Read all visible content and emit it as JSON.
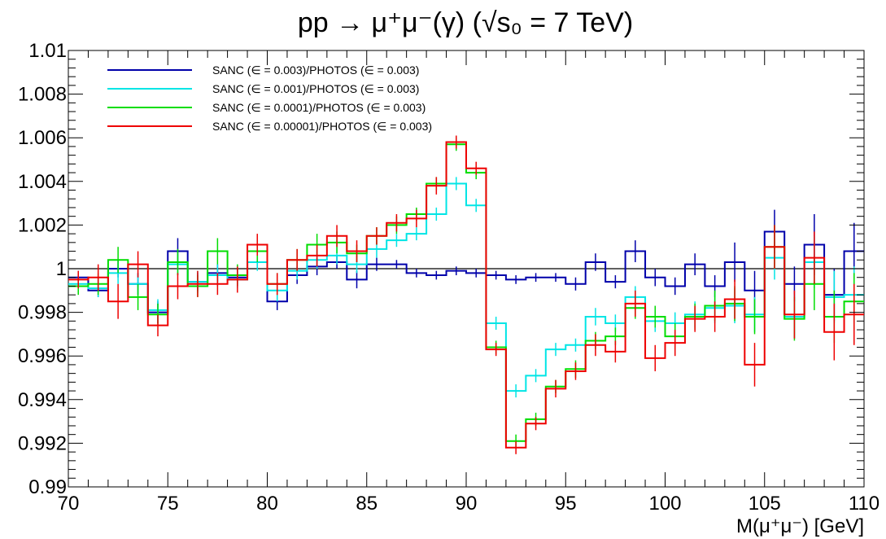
{
  "chart_data": {
    "type": "line",
    "title": "pp → μ⁺μ⁻(γ) (√s₀ = 7 TeV)",
    "xlabel": "M(μ⁺μ⁻) [GeV]",
    "ylabel": "",
    "xlim": [
      70,
      110
    ],
    "ylim": [
      0.99,
      1.01
    ],
    "x_ticks": [
      70,
      75,
      80,
      85,
      90,
      95,
      100,
      105,
      110
    ],
    "x_tick_labels": [
      "70",
      "75",
      "80",
      "85",
      "90",
      "95",
      "100",
      "105",
      "110"
    ],
    "y_ticks": [
      0.99,
      0.992,
      0.994,
      0.996,
      0.998,
      1.0,
      1.002,
      1.004,
      1.006,
      1.008,
      1.01
    ],
    "y_tick_labels": [
      "0.99",
      "0.992",
      "0.994",
      "0.996",
      "0.998",
      "1",
      "1.002",
      "1.004",
      "1.006",
      "1.008",
      "1.01"
    ],
    "reference_line": 1.0,
    "legend_position": "top-left",
    "grid": false,
    "bin_edges": [
      70,
      71,
      72,
      73,
      74,
      75,
      76,
      77,
      78,
      79,
      80,
      81,
      82,
      83,
      84,
      85,
      86,
      87,
      88,
      89,
      90,
      91,
      92,
      93,
      94,
      95,
      96,
      97,
      98,
      99,
      100,
      101,
      102,
      103,
      104,
      105,
      106,
      107,
      108,
      109,
      110
    ],
    "series": [
      {
        "name": "SANC (∈ = 0.003)/PHOTOS (∈ = 0.003)",
        "color": "#0000aa",
        "values": [
          0.9996,
          0.999,
          1.0,
          0.9993,
          0.998,
          1.0008,
          0.9994,
          0.9998,
          0.9996,
          1.0003,
          0.9985,
          0.9997,
          1.0001,
          1.0003,
          0.9995,
          1.0002,
          1.0002,
          0.9998,
          0.9997,
          0.9999,
          0.9998,
          0.9997,
          0.9995,
          0.9996,
          0.9996,
          0.9993,
          1.0003,
          0.9994,
          1.0008,
          0.9996,
          0.9992,
          1.0002,
          0.9992,
          1.0003,
          0.999,
          1.0017,
          0.9993,
          1.0011,
          0.9988,
          1.0008
        ],
        "errors": [
          0.0003,
          0.0003,
          0.0004,
          0.0005,
          0.0005,
          0.0006,
          0.0004,
          0.0004,
          0.0004,
          0.0003,
          0.0004,
          0.0004,
          0.0004,
          0.0003,
          0.0004,
          0.0003,
          0.0002,
          0.0002,
          0.0002,
          0.0002,
          0.0002,
          0.0002,
          0.0002,
          0.0002,
          0.0002,
          0.0003,
          0.0004,
          0.0003,
          0.0005,
          0.0004,
          0.0004,
          0.0005,
          0.0005,
          0.0009,
          0.0009,
          0.001,
          0.0008,
          0.0014,
          0.0012,
          0.0013
        ]
      },
      {
        "name": "SANC (∈ = 0.001)/PHOTOS (∈ = 0.003)",
        "color": "#00e5e5",
        "values": [
          0.9993,
          0.9991,
          0.9998,
          0.9993,
          0.9981,
          1.0002,
          0.9994,
          0.9997,
          0.9995,
          1.0003,
          0.999,
          0.9999,
          1.0004,
          1.0006,
          1.0002,
          1.0009,
          1.0013,
          1.0016,
          1.0025,
          1.0039,
          1.0029,
          0.9975,
          0.9944,
          0.9951,
          0.9963,
          0.9965,
          0.9978,
          0.9975,
          0.9987,
          0.9976,
          0.9975,
          0.9979,
          0.9982,
          0.9983,
          0.9979,
          1.0005,
          0.9978,
          1.0003,
          0.9987,
          0.9988
        ],
        "errors": [
          0.0004,
          0.0004,
          0.0005,
          0.0005,
          0.0005,
          0.0005,
          0.0005,
          0.0005,
          0.0004,
          0.0004,
          0.0005,
          0.0004,
          0.0004,
          0.0004,
          0.0004,
          0.0004,
          0.0003,
          0.0003,
          0.0003,
          0.0003,
          0.0003,
          0.0003,
          0.0003,
          0.0003,
          0.0003,
          0.0003,
          0.0004,
          0.0004,
          0.0005,
          0.0005,
          0.0005,
          0.0006,
          0.0007,
          0.0008,
          0.0008,
          0.001,
          0.001,
          0.0012,
          0.0012,
          0.0013
        ]
      },
      {
        "name": "SANC (∈ = 0.0001)/PHOTOS (∈ = 0.003)",
        "color": "#00dd00",
        "values": [
          0.9992,
          0.9993,
          1.0004,
          0.9987,
          0.9979,
          1.0003,
          0.9992,
          1.0008,
          0.9997,
          1.0008,
          0.9993,
          1.0004,
          1.0011,
          1.0012,
          1.0007,
          1.0015,
          1.002,
          1.0025,
          1.0039,
          1.0057,
          1.0044,
          0.9964,
          0.9921,
          0.9931,
          0.9946,
          0.9954,
          0.9967,
          0.9969,
          0.9982,
          0.9978,
          0.9969,
          0.9978,
          0.9983,
          0.9984,
          0.9978,
          1.001,
          0.9977,
          0.9993,
          0.9978,
          0.9985
        ],
        "errors": [
          0.0004,
          0.0005,
          0.0006,
          0.0006,
          0.0005,
          0.0006,
          0.0005,
          0.0006,
          0.0005,
          0.0005,
          0.0005,
          0.0005,
          0.0005,
          0.0005,
          0.0004,
          0.0004,
          0.0004,
          0.0003,
          0.0003,
          0.0003,
          0.0003,
          0.0003,
          0.0003,
          0.0003,
          0.0003,
          0.0004,
          0.0004,
          0.0004,
          0.0005,
          0.0005,
          0.0006,
          0.0006,
          0.0007,
          0.0008,
          0.0008,
          0.001,
          0.001,
          0.0012,
          0.0012,
          0.0013
        ]
      },
      {
        "name": "SANC (∈ = 0.00001)/PHOTOS (∈ = 0.003)",
        "color": "#ee0000",
        "values": [
          0.9995,
          0.9996,
          0.9985,
          1.0002,
          0.9974,
          0.9992,
          0.9993,
          0.9993,
          0.9995,
          1.0011,
          0.9993,
          1.0004,
          1.0006,
          1.0015,
          1.0008,
          1.0015,
          1.0021,
          1.0023,
          1.0038,
          1.0058,
          1.0046,
          0.9963,
          0.9918,
          0.9929,
          0.9945,
          0.9953,
          0.9965,
          0.9962,
          0.9984,
          0.9959,
          0.9966,
          0.9977,
          0.9978,
          0.9986,
          0.9956,
          1.001,
          0.9979,
          1.0005,
          0.9971,
          0.9979
        ],
        "errors": [
          0.0004,
          0.0006,
          0.0008,
          0.0006,
          0.0005,
          0.0006,
          0.0006,
          0.0005,
          0.0006,
          0.0005,
          0.0005,
          0.0005,
          0.0005,
          0.0005,
          0.0005,
          0.0004,
          0.0004,
          0.0004,
          0.0004,
          0.0003,
          0.0003,
          0.0003,
          0.0003,
          0.0003,
          0.0004,
          0.0004,
          0.0005,
          0.0005,
          0.0006,
          0.0006,
          0.0006,
          0.0006,
          0.0007,
          0.0009,
          0.001,
          0.001,
          0.0011,
          0.0012,
          0.0013,
          0.0014
        ]
      }
    ]
  }
}
